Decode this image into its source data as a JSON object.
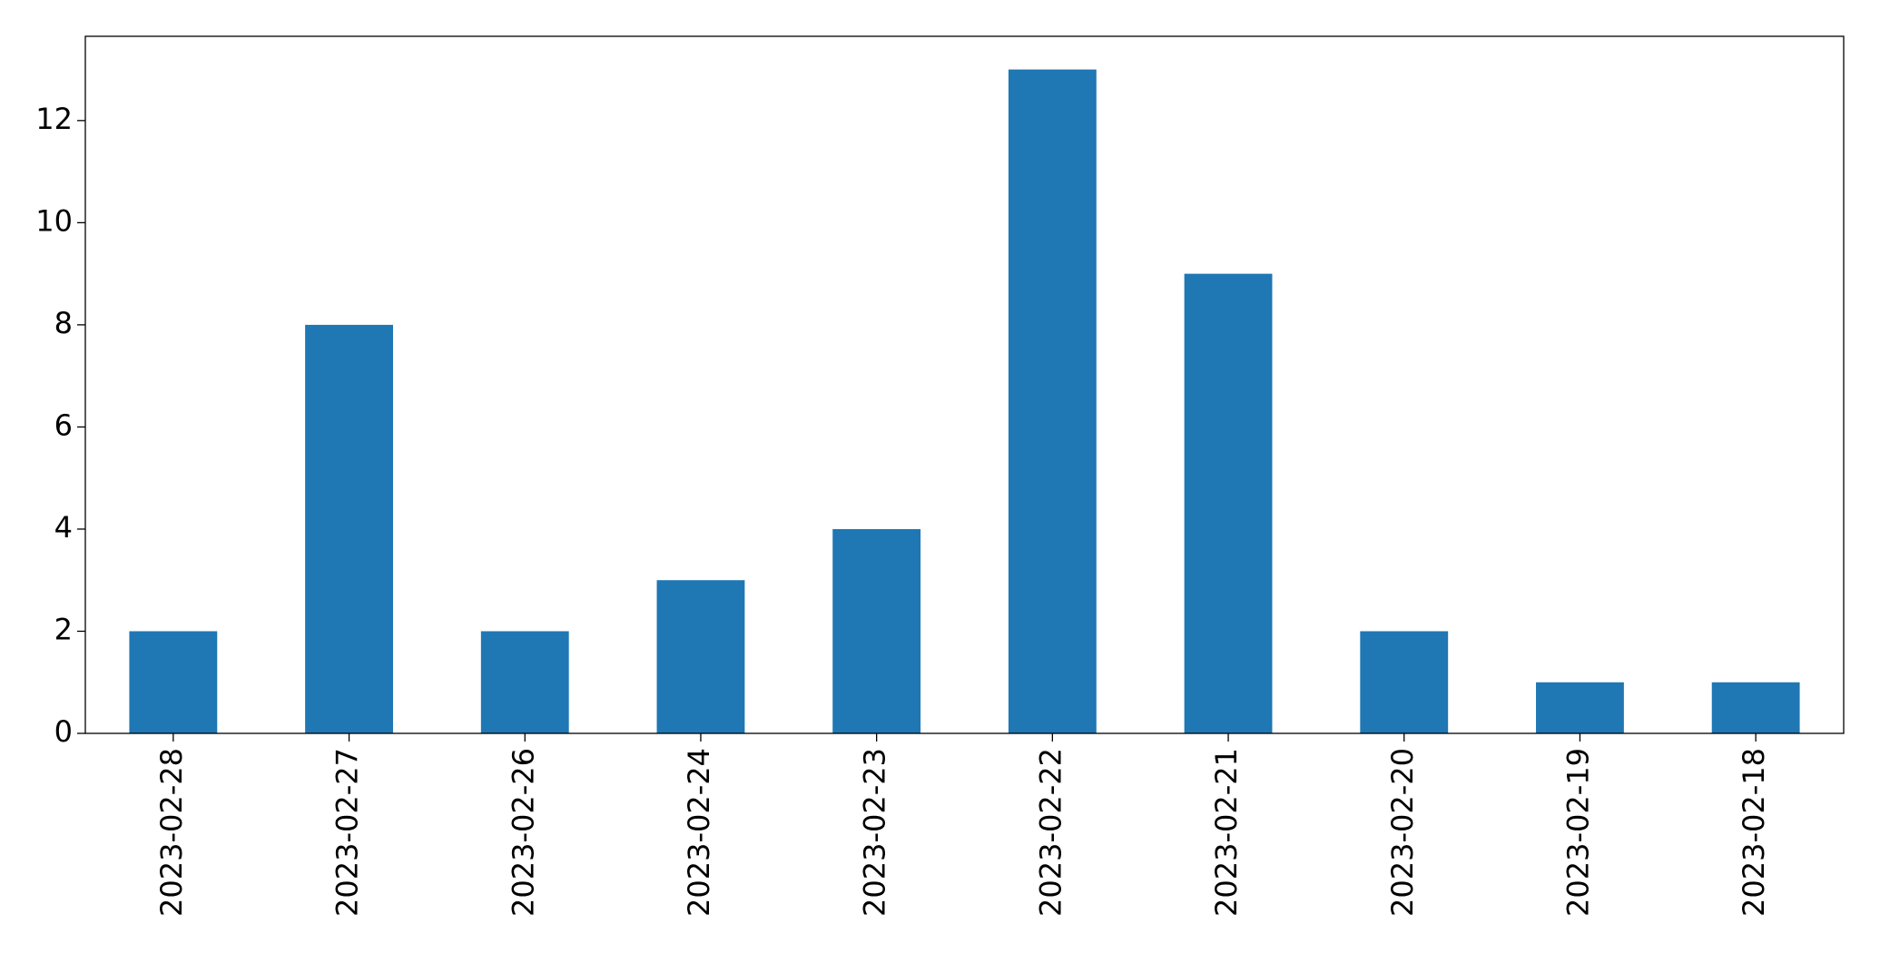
{
  "chart_data": {
    "type": "bar",
    "categories": [
      "2023-02-28",
      "2023-02-27",
      "2023-02-26",
      "2023-02-24",
      "2023-02-23",
      "2023-02-22",
      "2023-02-21",
      "2023-02-20",
      "2023-02-19",
      "2023-02-18"
    ],
    "values": [
      2,
      8,
      2,
      3,
      4,
      13,
      9,
      2,
      1,
      1
    ],
    "color": "#1f77b4",
    "ylim": [
      0,
      13.65
    ],
    "yticks": [
      0,
      2,
      4,
      6,
      8,
      10,
      12
    ],
    "grid": false
  }
}
